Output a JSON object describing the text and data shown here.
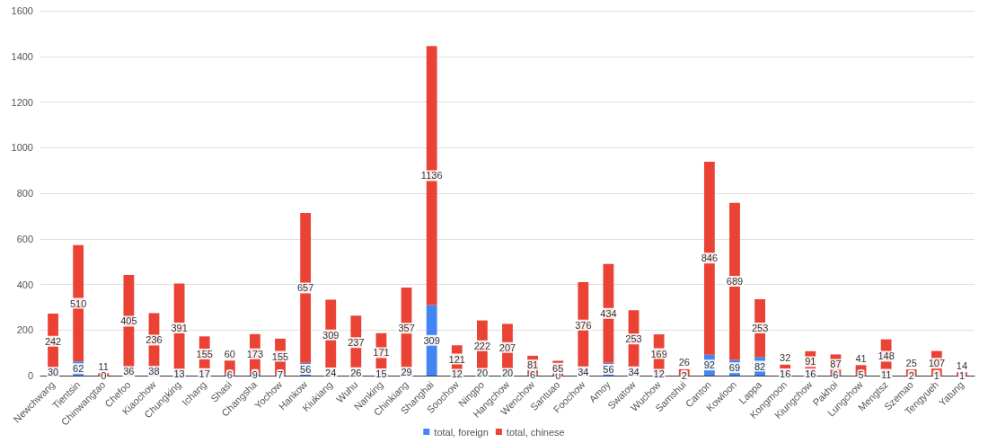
{
  "chart_data": {
    "type": "bar",
    "stacked": true,
    "categories": [
      "Newchwang",
      "Tientsin",
      "Chinwangtao",
      "Chefoo",
      "Kiaochow",
      "Chungking",
      "Ichang",
      "Shasi",
      "Changsha",
      "Yochow",
      "Hankow",
      "Kiukiang",
      "Wuhu",
      "Nanking",
      "Chinkiang",
      "Shanghai",
      "Soochow",
      "Ningpo",
      "Hangchow",
      "Wenchow",
      "Santuao",
      "Foochow",
      "Amoy",
      "Swatow",
      "Wuchow",
      "Samshui",
      "Canton",
      "Kowloon",
      "Lappa",
      "Kongmoon",
      "Kiungchow",
      "Pakhoi",
      "Lungchow",
      "Mengtsz",
      "Szemao",
      "Tengyueh",
      "Yatung"
    ],
    "series": [
      {
        "name": "total, foreign",
        "color": "#4285f4",
        "values": [
          30,
          62,
          0,
          36,
          38,
          13,
          17,
          6,
          9,
          7,
          56,
          24,
          26,
          15,
          29,
          309,
          12,
          20,
          20,
          6,
          0,
          34,
          56,
          34,
          12,
          2,
          92,
          69,
          82,
          16,
          16,
          6,
          5,
          11,
          2,
          1,
          1
        ]
      },
      {
        "name": "total, chinese",
        "color": "#ea4335",
        "values": [
          242,
          510,
          11,
          405,
          236,
          391,
          155,
          60,
          173,
          155,
          657,
          309,
          237,
          171,
          357,
          1136,
          121,
          222,
          207,
          81,
          65,
          376,
          434,
          253,
          169,
          26,
          846,
          689,
          253,
          32,
          91,
          87,
          41,
          148,
          25,
          107,
          14
        ]
      }
    ],
    "ylim": [
      0,
      1600
    ],
    "yticks": [
      0,
      200,
      400,
      600,
      800,
      1000,
      1200,
      1400,
      1600
    ],
    "grid": "y",
    "legend": "bottom",
    "data_labels": true
  }
}
